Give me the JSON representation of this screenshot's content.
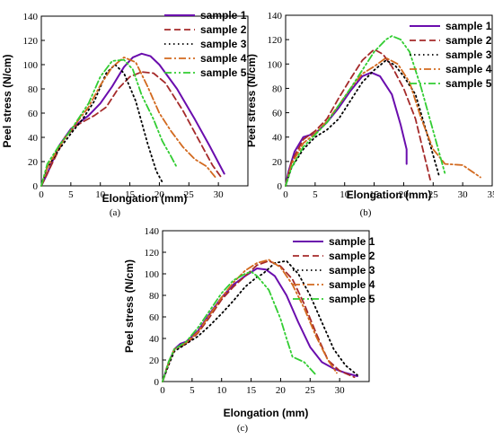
{
  "chart_data": [
    {
      "type": "line",
      "caption": "(a)",
      "xlabel": "Elongation (mm)",
      "ylabel": "Peel stress (N/cm)",
      "xlim": [
        0,
        35
      ],
      "ylim": [
        0,
        140
      ],
      "xticks": [
        0,
        5,
        10,
        15,
        20,
        25,
        30
      ],
      "yticks": [
        0,
        20,
        40,
        60,
        80,
        100,
        120,
        140
      ],
      "legend_position": "top-right",
      "series": [
        {
          "name": "sample 1",
          "color": "#6a0dad",
          "style": "solid",
          "points": [
            [
              0,
              0
            ],
            [
              1,
              10
            ],
            [
              3,
              33
            ],
            [
              5,
              47
            ],
            [
              8,
              58
            ],
            [
              10,
              68
            ],
            [
              12,
              82
            ],
            [
              14,
              98
            ],
            [
              15.5,
              106
            ],
            [
              17,
              109
            ],
            [
              18.5,
              107
            ],
            [
              20,
              100
            ],
            [
              23,
              80
            ],
            [
              26,
              55
            ],
            [
              28.5,
              33
            ],
            [
              31,
              10
            ]
          ]
        },
        {
          "name": "sample 2",
          "color": "#a52a2a",
          "style": "dashed",
          "points": [
            [
              0,
              0
            ],
            [
              2,
              20
            ],
            [
              4,
              40
            ],
            [
              6,
              50
            ],
            [
              9,
              58
            ],
            [
              11,
              65
            ],
            [
              13,
              80
            ],
            [
              15,
              90
            ],
            [
              17,
              94
            ],
            [
              19,
              93
            ],
            [
              21,
              85
            ],
            [
              24,
              62
            ],
            [
              27,
              35
            ],
            [
              29,
              17
            ],
            [
              30.5,
              7
            ]
          ]
        },
        {
          "name": "sample 3",
          "color": "#000000",
          "style": "dotted",
          "points": [
            [
              0,
              0
            ],
            [
              1,
              15
            ],
            [
              3,
              30
            ],
            [
              5,
              43
            ],
            [
              7,
              55
            ],
            [
              9,
              70
            ],
            [
              11,
              93
            ],
            [
              12.5,
              100
            ],
            [
              14,
              93
            ],
            [
              16,
              70
            ],
            [
              18,
              35
            ],
            [
              19.5,
              12
            ],
            [
              20.5,
              3
            ]
          ]
        },
        {
          "name": "sample 4",
          "color": "#d2691e",
          "style": "dashdot",
          "points": [
            [
              0,
              0
            ],
            [
              1,
              15
            ],
            [
              3,
              32
            ],
            [
              5,
              46
            ],
            [
              8,
              65
            ],
            [
              10,
              83
            ],
            [
              12,
              98
            ],
            [
              14,
              106
            ],
            [
              16,
              102
            ],
            [
              18,
              82
            ],
            [
              20,
              60
            ],
            [
              22,
              45
            ],
            [
              24,
              32
            ],
            [
              26,
              22
            ],
            [
              28,
              16
            ],
            [
              29.5,
              7
            ]
          ]
        },
        {
          "name": "sample 5",
          "color": "#32cd32",
          "style": "dashdotdot",
          "points": [
            [
              0,
              0
            ],
            [
              1,
              18
            ],
            [
              3,
              33
            ],
            [
              5,
              46
            ],
            [
              8,
              68
            ],
            [
              10,
              90
            ],
            [
              12,
              103
            ],
            [
              14,
              104
            ],
            [
              15.5,
              96
            ],
            [
              17,
              75
            ],
            [
              19,
              55
            ],
            [
              20.5,
              37
            ],
            [
              22,
              24
            ],
            [
              23,
              15
            ]
          ]
        }
      ]
    },
    {
      "type": "line",
      "caption": "(b)",
      "xlabel": "Elongation (mm)",
      "ylabel": "Peel stress (N/cm)",
      "xlim": [
        0,
        35
      ],
      "ylim": [
        0,
        140
      ],
      "xticks": [
        0,
        5,
        10,
        15,
        20,
        25,
        30,
        35
      ],
      "yticks": [
        0,
        20,
        40,
        60,
        80,
        100,
        120,
        140
      ],
      "legend_position": "top-right",
      "series": [
        {
          "name": "sample 1",
          "color": "#6a0dad",
          "style": "solid",
          "points": [
            [
              0,
              0
            ],
            [
              0.5,
              12
            ],
            [
              1.5,
              28
            ],
            [
              3,
              40
            ],
            [
              5,
              43
            ],
            [
              7,
              52
            ],
            [
              9,
              64
            ],
            [
              11,
              78
            ],
            [
              13,
              90
            ],
            [
              14.5,
              93
            ],
            [
              16,
              90
            ],
            [
              18,
              75
            ],
            [
              19.5,
              50
            ],
            [
              20.5,
              30
            ],
            [
              20.5,
              18
            ]
          ]
        },
        {
          "name": "sample 2",
          "color": "#a52a2a",
          "style": "dashed",
          "points": [
            [
              0,
              0
            ],
            [
              1,
              20
            ],
            [
              3,
              38
            ],
            [
              5,
              45
            ],
            [
              7,
              55
            ],
            [
              9,
              72
            ],
            [
              11,
              88
            ],
            [
              13,
              103
            ],
            [
              15,
              112
            ],
            [
              16.5,
              108
            ],
            [
              18,
              98
            ],
            [
              20,
              80
            ],
            [
              22,
              55
            ],
            [
              23.5,
              25
            ],
            [
              24.5,
              5
            ]
          ]
        },
        {
          "name": "sample 3",
          "color": "#000000",
          "style": "dotted",
          "points": [
            [
              0,
              0
            ],
            [
              1,
              15
            ],
            [
              3,
              30
            ],
            [
              5,
              40
            ],
            [
              7,
              46
            ],
            [
              9,
              55
            ],
            [
              11,
              70
            ],
            [
              13,
              85
            ],
            [
              15,
              95
            ],
            [
              17,
              103
            ],
            [
              18.5,
              99
            ],
            [
              20,
              90
            ],
            [
              22,
              75
            ],
            [
              24,
              42
            ],
            [
              26,
              8
            ]
          ]
        },
        {
          "name": "sample 4",
          "color": "#d2691e",
          "style": "dashdot",
          "points": [
            [
              0,
              0
            ],
            [
              1,
              18
            ],
            [
              3,
              35
            ],
            [
              5,
              43
            ],
            [
              7,
              53
            ],
            [
              9,
              66
            ],
            [
              11,
              80
            ],
            [
              13,
              92
            ],
            [
              15,
              98
            ],
            [
              17,
              105
            ],
            [
              19,
              100
            ],
            [
              21,
              85
            ],
            [
              23,
              55
            ],
            [
              25,
              30
            ],
            [
              27,
              18
            ],
            [
              30,
              17
            ],
            [
              33,
              7
            ]
          ]
        },
        {
          "name": "sample 5",
          "color": "#32cd32",
          "style": "dashdotdot",
          "points": [
            [
              0,
              0
            ],
            [
              1,
              15
            ],
            [
              3,
              32
            ],
            [
              5,
              42
            ],
            [
              7,
              52
            ],
            [
              9,
              66
            ],
            [
              11,
              80
            ],
            [
              13,
              95
            ],
            [
              15,
              110
            ],
            [
              17,
              120
            ],
            [
              18,
              123
            ],
            [
              19.5,
              120
            ],
            [
              21,
              110
            ],
            [
              23,
              80
            ],
            [
              25,
              45
            ],
            [
              27,
              10
            ]
          ]
        }
      ]
    },
    {
      "type": "line",
      "caption": "(c)",
      "xlabel": "Elongation (mm)",
      "ylabel": "Peel stress (N/cm)",
      "xlim": [
        0,
        35
      ],
      "ylim": [
        0,
        140
      ],
      "xticks": [
        0,
        5,
        10,
        15,
        20,
        25,
        30
      ],
      "yticks": [
        0,
        20,
        40,
        60,
        80,
        100,
        120,
        140
      ],
      "legend_position": "top-right",
      "series": [
        {
          "name": "sample 1",
          "color": "#6a0dad",
          "style": "solid",
          "points": [
            [
              0,
              0
            ],
            [
              1,
              17
            ],
            [
              2,
              30
            ],
            [
              3,
              35
            ],
            [
              4,
              37
            ],
            [
              6,
              47
            ],
            [
              8,
              63
            ],
            [
              10,
              78
            ],
            [
              12,
              90
            ],
            [
              14,
              98
            ],
            [
              16,
              105
            ],
            [
              17.5,
              104
            ],
            [
              19,
              98
            ],
            [
              21,
              80
            ],
            [
              23,
              55
            ],
            [
              25,
              32
            ],
            [
              27,
              18
            ],
            [
              29,
              12
            ],
            [
              31,
              8
            ],
            [
              33,
              5
            ]
          ]
        },
        {
          "name": "sample 2",
          "color": "#a52a2a",
          "style": "dashed",
          "points": [
            [
              0,
              0
            ],
            [
              1,
              18
            ],
            [
              2,
              30
            ],
            [
              4,
              35
            ],
            [
              6,
              45
            ],
            [
              8,
              60
            ],
            [
              10,
              76
            ],
            [
              12,
              88
            ],
            [
              14,
              98
            ],
            [
              16,
              108
            ],
            [
              18,
              112
            ],
            [
              20,
              107
            ],
            [
              22,
              95
            ],
            [
              24,
              72
            ],
            [
              26,
              45
            ],
            [
              28,
              20
            ],
            [
              30,
              10
            ],
            [
              32.5,
              4
            ]
          ]
        },
        {
          "name": "sample 3",
          "color": "#000000",
          "style": "dotted",
          "points": [
            [
              0,
              0
            ],
            [
              1,
              15
            ],
            [
              2,
              28
            ],
            [
              4,
              35
            ],
            [
              6,
              42
            ],
            [
              8,
              52
            ],
            [
              10,
              63
            ],
            [
              12,
              75
            ],
            [
              14,
              88
            ],
            [
              16,
              97
            ],
            [
              17,
              100
            ],
            [
              19,
              110
            ],
            [
              21,
              112
            ],
            [
              23,
              100
            ],
            [
              25,
              80
            ],
            [
              27,
              55
            ],
            [
              29,
              30
            ],
            [
              31,
              15
            ],
            [
              33,
              6
            ]
          ]
        },
        {
          "name": "sample 4",
          "color": "#d2691e",
          "style": "dashdot",
          "points": [
            [
              0,
              0
            ],
            [
              1,
              17
            ],
            [
              2,
              30
            ],
            [
              4,
              36
            ],
            [
              6,
              46
            ],
            [
              8,
              62
            ],
            [
              10,
              78
            ],
            [
              12,
              92
            ],
            [
              14,
              103
            ],
            [
              16,
              110
            ],
            [
              18,
              113
            ],
            [
              20,
              106
            ],
            [
              22,
              90
            ],
            [
              24,
              68
            ],
            [
              26,
              42
            ],
            [
              28,
              20
            ],
            [
              29.5,
              8
            ]
          ]
        },
        {
          "name": "sample 5",
          "color": "#32cd32",
          "style": "dashdotdot",
          "points": [
            [
              0,
              0
            ],
            [
              1,
              18
            ],
            [
              2,
              30
            ],
            [
              4,
              37
            ],
            [
              6,
              50
            ],
            [
              8,
              66
            ],
            [
              10,
              82
            ],
            [
              12,
              94
            ],
            [
              14,
              100
            ],
            [
              15,
              102
            ],
            [
              16,
              98
            ],
            [
              18,
              85
            ],
            [
              20,
              58
            ],
            [
              21,
              40
            ],
            [
              22,
              23
            ],
            [
              24,
              18
            ],
            [
              26,
              6
            ]
          ]
        }
      ]
    }
  ]
}
